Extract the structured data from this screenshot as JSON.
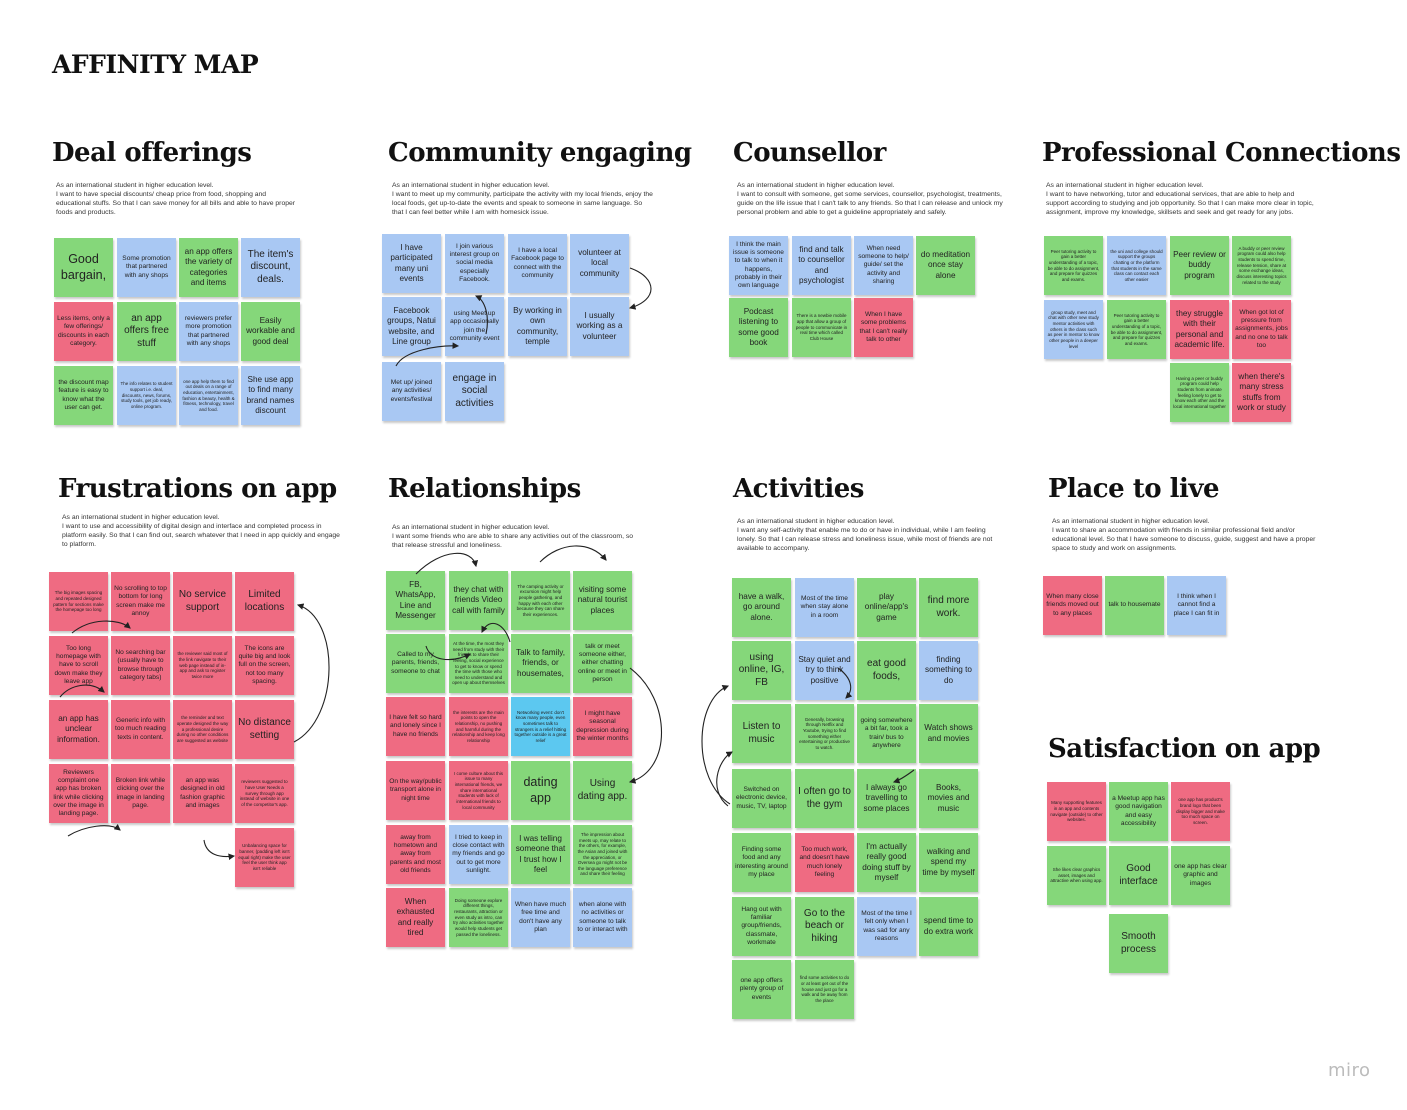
{
  "board": {
    "title": "AFFINITY MAP",
    "brand": "miro"
  },
  "note_colors": {
    "green": "#85d77a",
    "blue": "#a9c8f3",
    "red": "#ef6b82",
    "cyan": "#5cc8f0"
  },
  "clusters": [
    {
      "id": "deal",
      "title": "Deal offerings",
      "description": "As an international student in higher education level.\nI want to have special discounts/ cheap price from food, shopping and educational stuffs. So that I can save money for all bills and able to have proper foods and products.",
      "notes": [
        {
          "text": "Good bargain,",
          "color": "green"
        },
        {
          "text": "Some promotion that partnered with any shops",
          "color": "blue"
        },
        {
          "text": "an app offers the variety of categories and items",
          "color": "green"
        },
        {
          "text": "The item's discount, deals.",
          "color": "blue"
        },
        {
          "text": "Less items, only a few offerings/ discounts in each category.",
          "color": "red"
        },
        {
          "text": "an app offers free stuff",
          "color": "green"
        },
        {
          "text": "reviewers prefer more promotion that partnered with any shops",
          "color": "blue"
        },
        {
          "text": "Easily workable and good deal",
          "color": "green"
        },
        {
          "text": "the discount map feature is easy to know what the user can get.",
          "color": "green"
        },
        {
          "text": "The info relates to student support i.e. deal, discounts, news, forums, study tools, get job ready, online program.",
          "color": "blue"
        },
        {
          "text": "one app help them to find out deals on a range of education, entertainment, fashion & beauty, health & fitness, technology, travel and food.",
          "color": "blue"
        },
        {
          "text": "She use app to find many brand names discount",
          "color": "blue"
        }
      ]
    },
    {
      "id": "community",
      "title": "Community engaging",
      "description": "As an international student in higher education level.\nI want to meet up my community, participate the activity with my local friends, enjoy the local foods, get up-to-date the events and speak to someone in same language. So that I can feel better while I am with homesick issue.",
      "notes": [
        {
          "text": "I have participated many uni events",
          "color": "blue"
        },
        {
          "text": "I join various interest group on social media especially Facebook.",
          "color": "blue"
        },
        {
          "text": "I have a local Facebook page to connect with the community",
          "color": "blue"
        },
        {
          "text": "volunteer at local community",
          "color": "blue"
        },
        {
          "text": "Facebook groups, Natui website, and Line group",
          "color": "blue"
        },
        {
          "text": "using Meet up app occasionally join the community event",
          "color": "blue"
        },
        {
          "text": "By working in own community, temple",
          "color": "blue"
        },
        {
          "text": "I usually working as a volunteer",
          "color": "blue"
        },
        {
          "text": "Met up/ joined any activities/ events/festival",
          "color": "blue"
        },
        {
          "text": "engage in social activities",
          "color": "blue"
        }
      ]
    },
    {
      "id": "counsellor",
      "title": "Counsellor",
      "description": "As an international student in higher education level.\nI want to consult with someone, get some services, counsellor, psychologist, treatments, guide on the life issue that I can't talk to any friends. So that I can release and unlock my personal problem and able to get a guideline appropriately and safely.",
      "notes": [
        {
          "text": "I think the main issue is someone to talk to when it happens, probably in their own language",
          "color": "blue"
        },
        {
          "text": "find and talk to counsellor and psychologist",
          "color": "blue"
        },
        {
          "text": "When need someone to help/ guide/ set the activity and sharing",
          "color": "blue"
        },
        {
          "text": "do meditation once stay alone",
          "color": "green"
        },
        {
          "text": "Podcast listening to some good book",
          "color": "green"
        },
        {
          "text": "There is a newbie mobile app that allow a group of people to communicate in real time which called Club House",
          "color": "green"
        },
        {
          "text": "When I have some problems that I can't really talk to other",
          "color": "red"
        }
      ]
    },
    {
      "id": "professional",
      "title": "Professional Connections",
      "description": "As an international student in higher education level.\nI want to have networking, tutor and educational services, that are able to help and support according to studying and job opportunity. So that I can make more clear in topic, assignment, improve my knowledge, skillsets and seek and get ready for any jobs.",
      "notes": [
        {
          "text": "Peer tutoring activity to gain a better understanding of a topic, be able to do assignment, and prepare for quizzes and exams.",
          "color": "green"
        },
        {
          "text": "the uni and college should support the groups chatting or the platform that students in the same class can contact each other easier",
          "color": "blue"
        },
        {
          "text": "Peer review or buddy program",
          "color": "green"
        },
        {
          "text": "A buddy or peer review program could also help students to spend time, release tension, share at some exchange ideas, discuss interesting topics related to the study",
          "color": "green"
        },
        {
          "text": "group study, meet and chat with other new study mentor activities with others in the class such as peer in mentor to know other people in a deeper level",
          "color": "blue"
        },
        {
          "text": "Peer tutoring activity to gain a better understanding of a topic, be able to do assignment, and prepare for quizzes and exams.",
          "color": "green"
        },
        {
          "text": "they struggle with their personal and academic life.",
          "color": "red"
        },
        {
          "text": "When got lot of pressure from assignments, jobs and no one to talk too",
          "color": "red"
        },
        {
          "text": "Having a peer or buddy program could help students from animate feeling lonely to get to know each other and the local international together",
          "color": "green"
        },
        {
          "text": "when there's many stress stuffs from work or study",
          "color": "red"
        }
      ]
    },
    {
      "id": "frustrations",
      "title": "Frustrations on app",
      "description": "As an international student in higher education level.\nI want to use and accessibility of digital design and interface and completed process in platform easily. So that I can find out, search whatever that I need in app quickly and engage to platform.",
      "notes": [
        {
          "text": "The big images spacing and repeated designed pattern for sections make the homepage too long",
          "color": "red"
        },
        {
          "text": "No scrolling to top bottom for long screen make me annoy",
          "color": "red"
        },
        {
          "text": "No service support",
          "color": "red"
        },
        {
          "text": "Limited locations",
          "color": "red"
        },
        {
          "text": "Too long homepage with have to scroll down make they leave app",
          "color": "red"
        },
        {
          "text": "No searching bar (usually have to browse through category tabs)",
          "color": "red"
        },
        {
          "text": "the reviewer said most of the link navigate to their web page instead of in-app and ask to register twice more",
          "color": "red"
        },
        {
          "text": "The icons are quite big and look full on the screen, not too many spacing.",
          "color": "red"
        },
        {
          "text": "an app has unclear information.",
          "color": "red"
        },
        {
          "text": "Generic info with too much reading texts in content.",
          "color": "red"
        },
        {
          "text": "the reminder and text operate designed the way a professional desire during no other conditions are suggested as website",
          "color": "red"
        },
        {
          "text": "No distance setting",
          "color": "red"
        },
        {
          "text": "Reviewers complaint one app has broken link while clicking over the image in landing page.",
          "color": "red"
        },
        {
          "text": "Broken link while clicking over the image in landing page.",
          "color": "red"
        },
        {
          "text": "an app was designed in old fashion graphic and images",
          "color": "red"
        },
        {
          "text": "reviewers suggested to have User Needs a survey through app instead of website in one of the competitor's app.",
          "color": "red"
        },
        {
          "text": "Unbalancing space for banner, (padding left isn't equal right) make the user feel the user think app isn't reliable",
          "color": "red"
        }
      ]
    },
    {
      "id": "relationships",
      "title": "Relationships",
      "description": "As an international student in higher education level.\nI want some friends who are able to share any activities out of the classroom, so that release stressful and loneliness.",
      "notes": [
        {
          "text": "FB, WhatsApp, Line and Messenger",
          "color": "green"
        },
        {
          "text": "they chat with friends Video call with family",
          "color": "green"
        },
        {
          "text": "The camping activity or excursion might help people gathering, and happy with each other because they can share their experiences.",
          "color": "green"
        },
        {
          "text": "visiting some natural tourist places",
          "color": "green"
        },
        {
          "text": "Called to my parents, friends, someone to chat",
          "color": "green"
        },
        {
          "text": "At the time, the most they need from study with their friends to share their feeling, social experience to get to know or spend the time with those who need to understand and open up about themselves",
          "color": "green"
        },
        {
          "text": "Talk to family, friends, or housemates,",
          "color": "green"
        },
        {
          "text": "talk or meet someone either, either chatting online or meet in person",
          "color": "green"
        },
        {
          "text": "I have felt so hard and lonely since I have no friends",
          "color": "red"
        },
        {
          "text": "the interests are the main points to open the relationship, no pushing and harmful during the relationship and keep long relationship",
          "color": "red"
        },
        {
          "text": "Networking event: don't know many people, even sometimes talk to strangers is a relief hitting together outside is a great relief",
          "color": "cyan"
        },
        {
          "text": "I might have seasonal depression during the winter months",
          "color": "red"
        },
        {
          "text": "On the way/public transport alone in night time",
          "color": "red"
        },
        {
          "text": "I come culture about this issue to many international friends, we share international students with lack of international friends to local community",
          "color": "red"
        },
        {
          "text": "dating app",
          "color": "green"
        },
        {
          "text": "Using dating app.",
          "color": "green"
        },
        {
          "text": "away from hometown and away from parents and most old friends",
          "color": "red"
        },
        {
          "text": "I tried to keep in close contact with my friends and go out to get more sunlight.",
          "color": "blue"
        },
        {
          "text": "I was telling someone that I trust how I feel",
          "color": "green"
        },
        {
          "text": "The impression about meets up, may relate to the others, for example, the Asian and joined with the appreciation, or Oversea go might not be the language preference and share their feeling",
          "color": "green"
        },
        {
          "text": "When exhausted and really tired",
          "color": "red"
        },
        {
          "text": "Doing someone explore different things, restaurants, attraction or even study as intro, can try also activities together would help students get passed the loneliness.",
          "color": "green"
        },
        {
          "text": "When have much free time and don't have any plan",
          "color": "blue"
        },
        {
          "text": "when alone with no activities or someone to talk to or interact with",
          "color": "blue"
        }
      ]
    },
    {
      "id": "activities",
      "title": "Activities",
      "description": "As an international student in higher education level.\nI want any self-activity that enable me to do or have in individual, while I am feeling lonely. So that I can release stress and loneliness issue, while most of friends are not available to accompany.",
      "notes": [
        {
          "text": "have a walk, go around alone.",
          "color": "green"
        },
        {
          "text": "Most of the time when stay alone in a room",
          "color": "blue"
        },
        {
          "text": "play online/app's game",
          "color": "green"
        },
        {
          "text": "find more work.",
          "color": "green"
        },
        {
          "text": "using online, IG, FB",
          "color": "green"
        },
        {
          "text": "Stay quiet and try to think positive",
          "color": "blue"
        },
        {
          "text": "eat good foods,",
          "color": "green"
        },
        {
          "text": "finding something to do",
          "color": "blue"
        },
        {
          "text": "Listen to music",
          "color": "green"
        },
        {
          "text": "Generally, browsing through Netflix and Youtube, trying to find something either entertaining or productive to watch.",
          "color": "green"
        },
        {
          "text": "going somewhere a bit far, took a train/ bus to anywhere",
          "color": "green"
        },
        {
          "text": "Watch shows and movies",
          "color": "green"
        },
        {
          "text": "Switched on electronic device, music, TV, laptop",
          "color": "green"
        },
        {
          "text": "I often go to the gym",
          "color": "green"
        },
        {
          "text": "I always go travelling to some places",
          "color": "green"
        },
        {
          "text": "Books, movies and music",
          "color": "green"
        },
        {
          "text": "Finding some food and any interesting around my place",
          "color": "green"
        },
        {
          "text": "Too much work, and doesn't have much lonely feeling",
          "color": "red"
        },
        {
          "text": "I'm actually really good doing stuff by myself",
          "color": "green"
        },
        {
          "text": "walking and spend my time by myself",
          "color": "green"
        },
        {
          "text": "Hang out with familiar group/friends, classmate, workmate",
          "color": "green"
        },
        {
          "text": "Go to the beach or hiking",
          "color": "green"
        },
        {
          "text": "Most of the time I felt only when I was sad for any reasons",
          "color": "blue"
        },
        {
          "text": "spend time to do extra work",
          "color": "green"
        },
        {
          "text": "one app offers plenty group of events",
          "color": "green"
        },
        {
          "text": "find some activities to do or at least get out of the house and just go for a walk and be away from the place",
          "color": "green"
        }
      ]
    },
    {
      "id": "place",
      "title": "Place to live",
      "description": "As an international student in higher education level.\nI want to share an accommodation with friends in similar professional field and/or educational level. So that I have someone to discuss, guide, suggest and have a proper space to study and work on assignments.",
      "notes": [
        {
          "text": "When many close friends moved out to any places",
          "color": "red"
        },
        {
          "text": "talk to housemate",
          "color": "green"
        },
        {
          "text": "I think when I cannot find a place I can fit in",
          "color": "blue"
        }
      ]
    },
    {
      "id": "satisfaction",
      "title": "Satisfaction on app",
      "description": "",
      "notes": [
        {
          "text": "Many supporting features in an app and contents navigate (outside) to other websites.",
          "color": "red"
        },
        {
          "text": "a Meetup app has good navigation and easy accessibility",
          "color": "green"
        },
        {
          "text": "one app has product's brand logo that been display bigger and make too much space on screen.",
          "color": "red"
        },
        {
          "text": "She likes clear graphics asset, images and attractive when using app.",
          "color": "green"
        },
        {
          "text": "Good interface",
          "color": "green"
        },
        {
          "text": "one app has clear graphic and images",
          "color": "green"
        },
        {
          "text": "Smooth process",
          "color": "green"
        }
      ]
    }
  ]
}
